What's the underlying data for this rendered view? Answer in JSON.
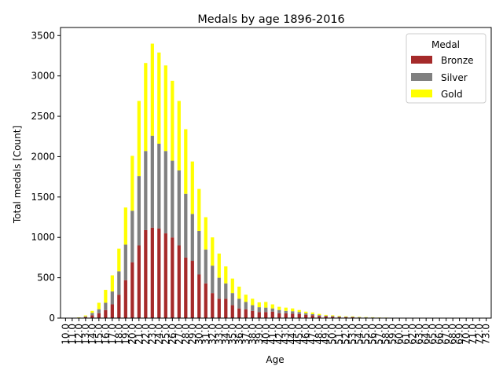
{
  "chart_data": {
    "type": "bar",
    "stacked": true,
    "title": "Medals by age 1896-2016",
    "xlabel": "Age",
    "ylabel": "Total medals [Count]",
    "ylim": [
      0,
      3600
    ],
    "yticks": [
      0,
      500,
      1000,
      1500,
      2000,
      2500,
      3000,
      3500
    ],
    "grid": false,
    "legend": {
      "title": "Medal",
      "placement": "top-right"
    },
    "categories": [
      "10.0",
      "11.0",
      "12.0",
      "13.0",
      "14.0",
      "15.0",
      "16.0",
      "17.0",
      "18.0",
      "19.0",
      "20.0",
      "21.0",
      "22.0",
      "23.0",
      "24.0",
      "25.0",
      "26.0",
      "27.0",
      "28.0",
      "29.0",
      "30.0",
      "31.0",
      "32.0",
      "33.0",
      "34.0",
      "35.0",
      "36.0",
      "37.0",
      "38.0",
      "39.0",
      "40.0",
      "41.0",
      "42.0",
      "43.0",
      "44.0",
      "45.0",
      "46.0",
      "47.0",
      "48.0",
      "49.0",
      "50.0",
      "51.0",
      "52.0",
      "53.0",
      "54.0",
      "55.0",
      "56.0",
      "57.0",
      "58.0",
      "59.0",
      "60.0",
      "61.0",
      "62.0",
      "63.0",
      "64.0",
      "65.0",
      "66.0",
      "67.0",
      "68.0",
      "69.0",
      "70.0",
      "71.0",
      "72.0",
      "73.0"
    ],
    "series": [
      {
        "name": "Bronze",
        "color": "#a52a2a",
        "values": [
          0,
          1,
          4,
          12,
          35,
          60,
          100,
          170,
          290,
          470,
          690,
          900,
          1090,
          1120,
          1110,
          1050,
          1000,
          900,
          750,
          710,
          540,
          430,
          310,
          240,
          240,
          160,
          120,
          110,
          90,
          75,
          75,
          80,
          60,
          60,
          55,
          50,
          40,
          35,
          25,
          20,
          15,
          12,
          10,
          10,
          7,
          5,
          5,
          3,
          2,
          2,
          2,
          1,
          1,
          1,
          0,
          0,
          0,
          0,
          0,
          0,
          0,
          0,
          0,
          0
        ]
      },
      {
        "name": "Silver",
        "color": "#808080",
        "values": [
          0,
          1,
          3,
          10,
          30,
          50,
          90,
          160,
          290,
          440,
          640,
          860,
          980,
          1140,
          1050,
          1020,
          950,
          930,
          790,
          580,
          540,
          420,
          340,
          260,
          190,
          150,
          120,
          90,
          70,
          60,
          55,
          40,
          40,
          30,
          30,
          25,
          20,
          15,
          12,
          10,
          10,
          8,
          6,
          6,
          5,
          4,
          3,
          2,
          2,
          1,
          1,
          1,
          1,
          1,
          0,
          0,
          0,
          0,
          0,
          0,
          0,
          0,
          0,
          0
        ]
      },
      {
        "name": "Gold",
        "color": "#ffff00",
        "values": [
          0,
          1,
          3,
          11,
          25,
          80,
          160,
          200,
          280,
          460,
          680,
          930,
          1090,
          1140,
          1130,
          1060,
          990,
          860,
          800,
          650,
          520,
          400,
          350,
          300,
          210,
          180,
          150,
          90,
          80,
          60,
          70,
          50,
          40,
          40,
          35,
          25,
          20,
          20,
          15,
          10,
          10,
          8,
          6,
          6,
          5,
          4,
          3,
          2,
          2,
          1,
          1,
          1,
          1,
          1,
          0,
          0,
          0,
          0,
          0,
          0,
          0,
          0,
          0,
          0
        ]
      }
    ]
  }
}
